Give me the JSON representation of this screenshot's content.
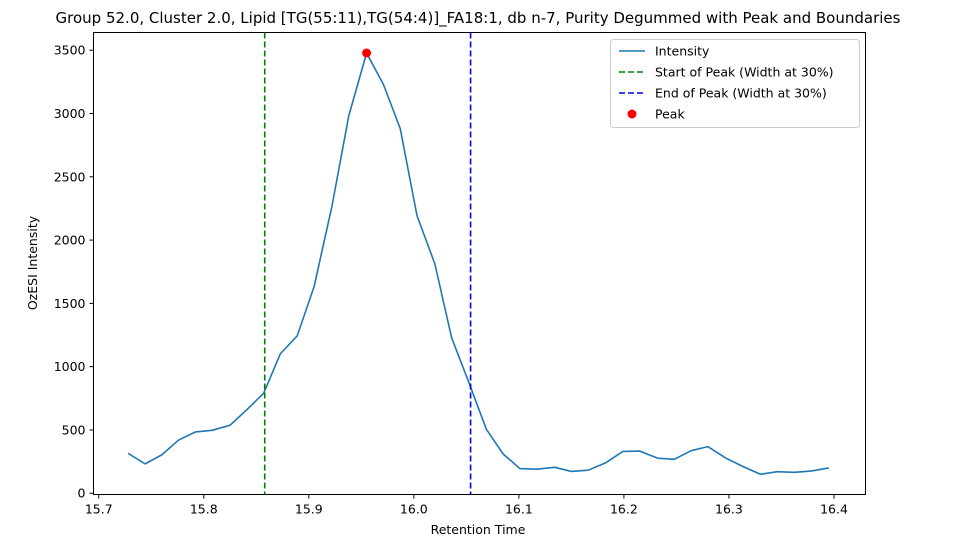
{
  "chart_data": {
    "type": "line",
    "title": "Group 52.0, Cluster 2.0, Lipid [TG(55:11),TG(54:4)]_FA18:1, db n-7, Purity Degummed with Peak and Boundaries",
    "xlabel": "Retention Time",
    "ylabel": "OzESI Intensity",
    "xlim": [
      15.695,
      16.43
    ],
    "ylim": [
      -10,
      3640
    ],
    "xticks": [
      15.7,
      15.8,
      15.9,
      16.0,
      16.1,
      16.2,
      16.3,
      16.4
    ],
    "xtick_labels": [
      "15.7",
      "15.8",
      "15.9",
      "16.0",
      "16.1",
      "16.2",
      "16.3",
      "16.4"
    ],
    "yticks": [
      0,
      500,
      1000,
      1500,
      2000,
      2500,
      3000,
      3500
    ],
    "ytick_labels": [
      "0",
      "500",
      "1000",
      "1500",
      "2000",
      "2500",
      "3000",
      "3500"
    ],
    "grid": false,
    "legend_position": "top-right",
    "series": [
      {
        "name": "Intensity",
        "color": "#1f77b4",
        "style": "solid",
        "x": [
          15.728,
          15.744,
          15.76,
          15.776,
          15.792,
          15.808,
          15.825,
          15.841,
          15.857,
          15.873,
          15.889,
          15.905,
          15.922,
          15.938,
          15.955,
          15.971,
          15.987,
          16.003,
          16.02,
          16.036,
          16.052,
          16.069,
          16.085,
          16.101,
          16.117,
          16.134,
          16.15,
          16.166,
          16.183,
          16.199,
          16.215,
          16.232,
          16.248,
          16.264,
          16.28,
          16.297,
          16.313,
          16.33,
          16.346,
          16.362,
          16.378,
          16.395
        ],
        "y": [
          315,
          232,
          303,
          420,
          484,
          497,
          537,
          660,
          790,
          1103,
          1244,
          1632,
          2266,
          2980,
          3478,
          3230,
          2882,
          2193,
          1812,
          1227,
          883,
          506,
          310,
          195,
          190,
          205,
          172,
          182,
          242,
          330,
          333,
          277,
          268,
          336,
          368,
          278,
          212,
          150,
          170,
          165,
          175,
          200
        ]
      }
    ],
    "vlines": [
      {
        "name": "Start of Peak (Width at 30%)",
        "x": 15.858,
        "color": "#008000",
        "style": "dashed"
      },
      {
        "name": "End of Peak (Width at 30%)",
        "x": 16.054,
        "color": "#0000ff",
        "style": "dashed"
      }
    ],
    "peak": {
      "name": "Peak",
      "x": 15.955,
      "y": 3478,
      "color": "#ff0000"
    }
  }
}
